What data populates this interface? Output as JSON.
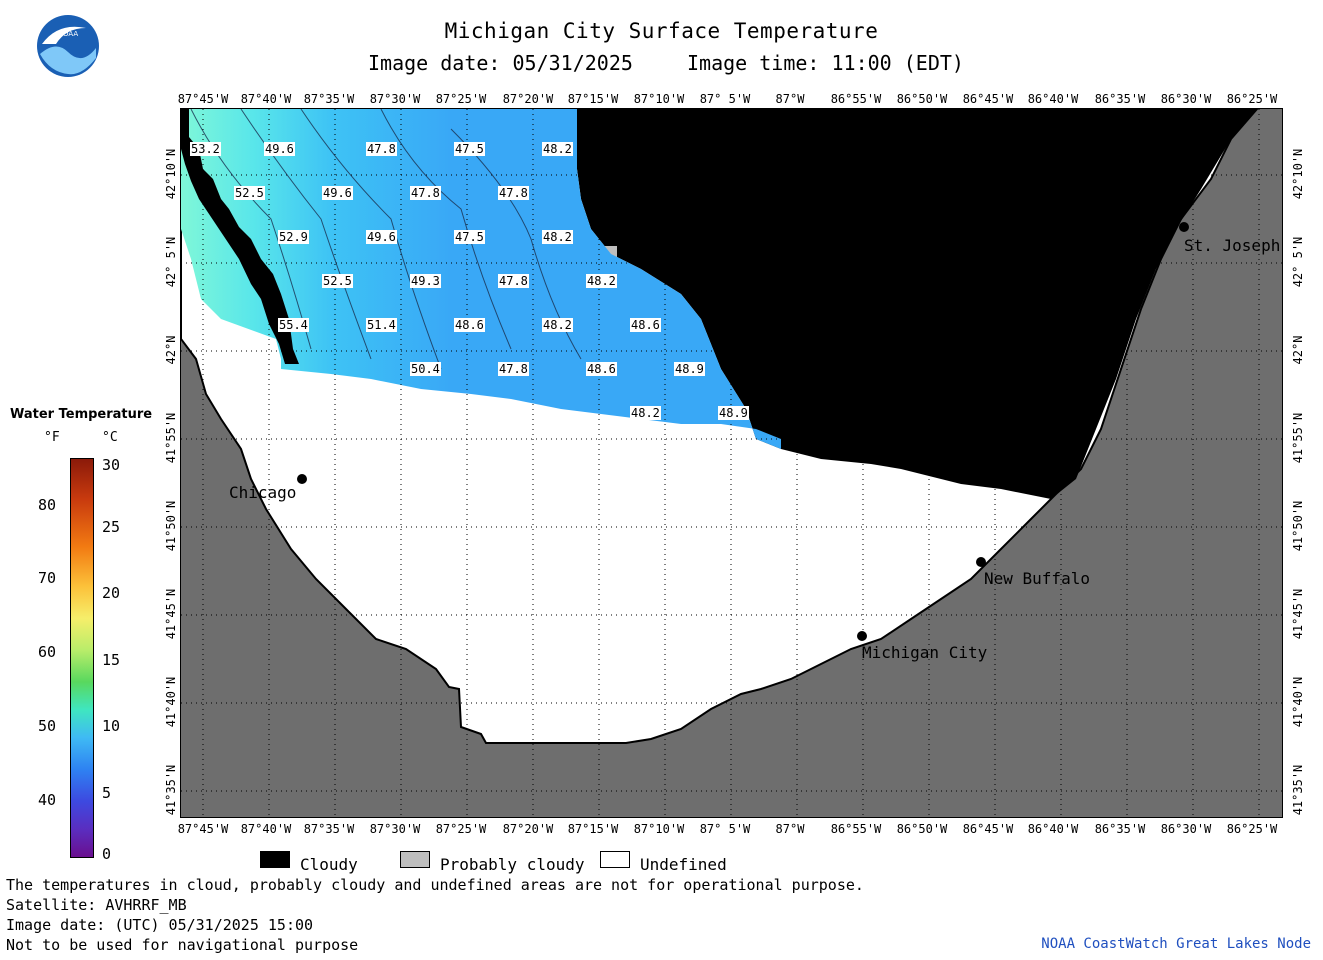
{
  "header": {
    "title": "Michigan City Surface Temperature",
    "image_date": "Image date: 05/31/2025",
    "image_time": "Image time: 11:00 (EDT)"
  },
  "logo": {
    "icon": "noaa-logo-icon",
    "text": "NOAA"
  },
  "lon_labels": [
    "87°45'W",
    "87°40'W",
    "87°35'W",
    "87°30'W",
    "87°25'W",
    "87°20'W",
    "87°15'W",
    "87°10'W",
    "87° 5'W",
    "87°W",
    "86°55'W",
    "86°50'W",
    "86°45'W",
    "86°40'W",
    "86°35'W",
    "86°30'W",
    "86°25'W"
  ],
  "lat_labels": [
    "42°10'N",
    "42° 5'N",
    "42°N",
    "41°55'N",
    "41°50'N",
    "41°45'N",
    "41°40'N",
    "41°35'N"
  ],
  "cities": {
    "st_joseph": "St. Joseph",
    "chicago": "Chicago",
    "new_buffalo": "New Buffalo",
    "michigan_city": "Michigan City"
  },
  "temperatures": [
    "53.2",
    "49.6",
    "47.8",
    "47.5",
    "48.2",
    "52.5",
    "49.6",
    "47.8",
    "47.8",
    "52.9",
    "49.6",
    "47.5",
    "48.2",
    "52.5",
    "49.3",
    "47.8",
    "48.2",
    "55.4",
    "51.4",
    "48.6",
    "48.2",
    "48.6",
    "50.4",
    "47.8",
    "48.6",
    "48.9",
    "48.2",
    "48.9"
  ],
  "colorbar": {
    "title": "Water Temperature",
    "unit_f": "°F",
    "unit_c": "°C",
    "f_ticks": [
      "80",
      "70",
      "60",
      "50",
      "40"
    ],
    "c_ticks": [
      "30",
      "25",
      "20",
      "15",
      "10",
      "5",
      "0"
    ]
  },
  "legend": {
    "cloudy": "Cloudy",
    "probably_cloudy": "Probably cloudy",
    "undefined": "Undefined",
    "colors": {
      "cloudy": "#000000",
      "probably_cloudy": "#bebebe",
      "undefined": "#ffffff",
      "land": "#6e6e6e",
      "water": "#3fa9f5"
    }
  },
  "footer": {
    "disclaimer": "The temperatures in cloud, probably cloudy and undefined areas are not for operational purpose.",
    "satellite": "Satellite: AVHRRF_MB",
    "utc_date": "Image date: (UTC) 05/31/2025  15:00",
    "nav_warning": "Not to be used for navigational purpose",
    "credit": "NOAA CoastWatch Great Lakes Node"
  }
}
